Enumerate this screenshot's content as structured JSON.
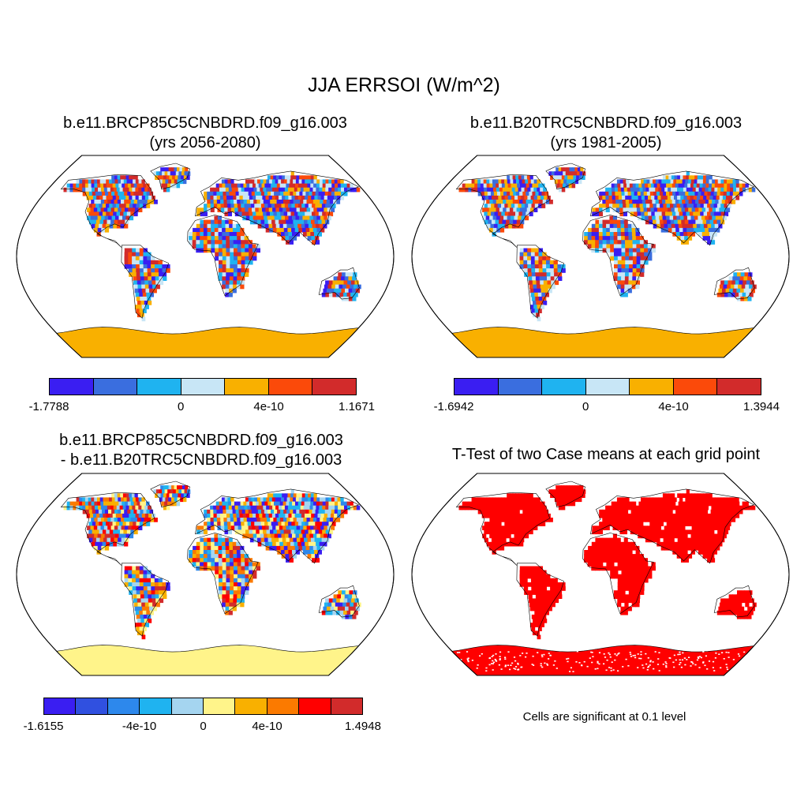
{
  "figure": {
    "title": "JJA ERRSOI (W/m^2)"
  },
  "panels": [
    {
      "id": "p1",
      "title_line1": "b.e11.BRCP85C5CNBDRD.f09_g16.003",
      "title_line2": "(yrs 2056-2080)",
      "colorbar": {
        "colors": [
          "#3a1ef2",
          "#3a6edf",
          "#1fb3f0",
          "#c8e6f6",
          "#f9b000",
          "#fb4a0a",
          "#d22b2b"
        ],
        "labels": [
          "-1.7788",
          "0",
          "4e-10",
          "1.1671"
        ],
        "label_boundaries": [
          0,
          3,
          5,
          7
        ]
      },
      "palette": [
        "#3a1ef2",
        "#3a6edf",
        "#1fb3f0",
        "#c8e6f6",
        "#f9b000",
        "#fb4a0a",
        "#d22b2b"
      ],
      "antarctica_color": "#f9b000"
    },
    {
      "id": "p2",
      "title_line1": "b.e11.B20TRC5CNBDRD.f09_g16.003",
      "title_line2": "(yrs 1981-2005)",
      "colorbar": {
        "colors": [
          "#3a1ef2",
          "#3a6edf",
          "#1fb3f0",
          "#c8e6f6",
          "#f9b000",
          "#fb4a0a",
          "#d22b2b"
        ],
        "labels": [
          "-1.6942",
          "0",
          "4e-10",
          "1.3944"
        ],
        "label_boundaries": [
          0,
          3,
          5,
          7
        ]
      },
      "palette": [
        "#3a1ef2",
        "#3a6edf",
        "#1fb3f0",
        "#c8e6f6",
        "#f9b000",
        "#fb4a0a",
        "#d22b2b"
      ],
      "antarctica_color": "#f9b000"
    },
    {
      "id": "p3",
      "title_line1": "b.e11.BRCP85C5CNBDRD.f09_g16.003",
      "title_line2": "- b.e11.B20TRC5CNBDRD.f09_g16.003",
      "colorbar": {
        "colors": [
          "#3a1ef2",
          "#3050e0",
          "#2d88ec",
          "#1fb3f0",
          "#a5d5f0",
          "#fff48a",
          "#f9b000",
          "#fb7a00",
          "#ff0000",
          "#d22b2b"
        ],
        "labels": [
          "-1.6155",
          "-4e-10",
          "0",
          "4e-10",
          "1.4948"
        ],
        "label_boundaries": [
          0,
          3,
          5,
          7,
          10
        ]
      },
      "palette": [
        "#3a1ef2",
        "#2d88ec",
        "#1fb3f0",
        "#a5d5f0",
        "#fff48a",
        "#f9b000",
        "#fb7a00",
        "#ff0000",
        "#d22b2b"
      ],
      "antarctica_color": "#fff48a"
    },
    {
      "id": "p4",
      "title_line1": "T-Test of two Case means at each grid point",
      "title_line2": "",
      "note": "Cells are significant at 0.1 level",
      "palette": [
        "#ff0000"
      ],
      "antarctica_color": "#ff0000"
    }
  ]
}
